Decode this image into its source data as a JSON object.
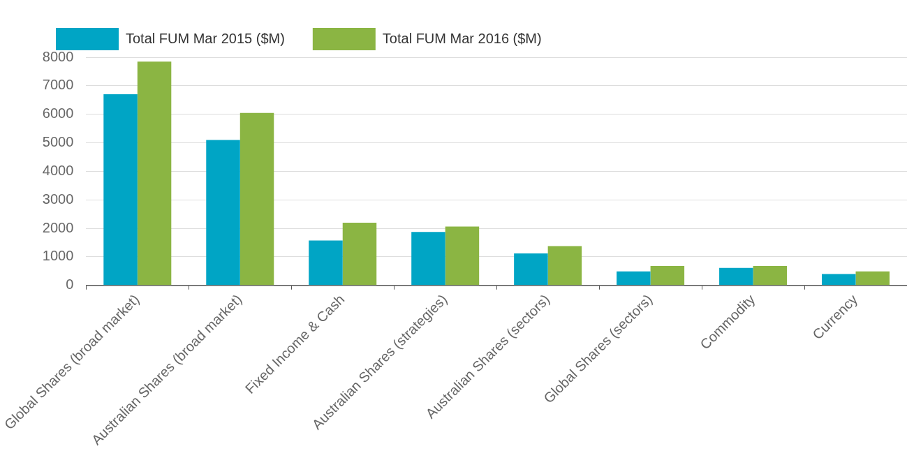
{
  "chart_data": {
    "type": "bar",
    "categories": [
      "Global Shares (broad market)",
      "Australian Shares (broad market)",
      "Fixed Income & Cash",
      "Australian Shares (strategies)",
      "Australian Shares (sectors)",
      "Global Shares (sectors)",
      "Commodity",
      "Currency"
    ],
    "series": [
      {
        "name": "Total FUM Mar 2015 ($M)",
        "color": "#00a5c5",
        "values": [
          6700,
          5100,
          1570,
          1870,
          1120,
          490,
          610,
          400
        ]
      },
      {
        "name": "Total FUM Mar 2016 ($M)",
        "color": "#8bb543",
        "values": [
          7850,
          6050,
          2200,
          2060,
          1380,
          680,
          680,
          490
        ]
      }
    ],
    "ylim": [
      0,
      8000
    ],
    "yticks": [
      0,
      1000,
      2000,
      3000,
      4000,
      5000,
      6000,
      7000,
      8000
    ],
    "grid": "y",
    "legend": "top left"
  }
}
